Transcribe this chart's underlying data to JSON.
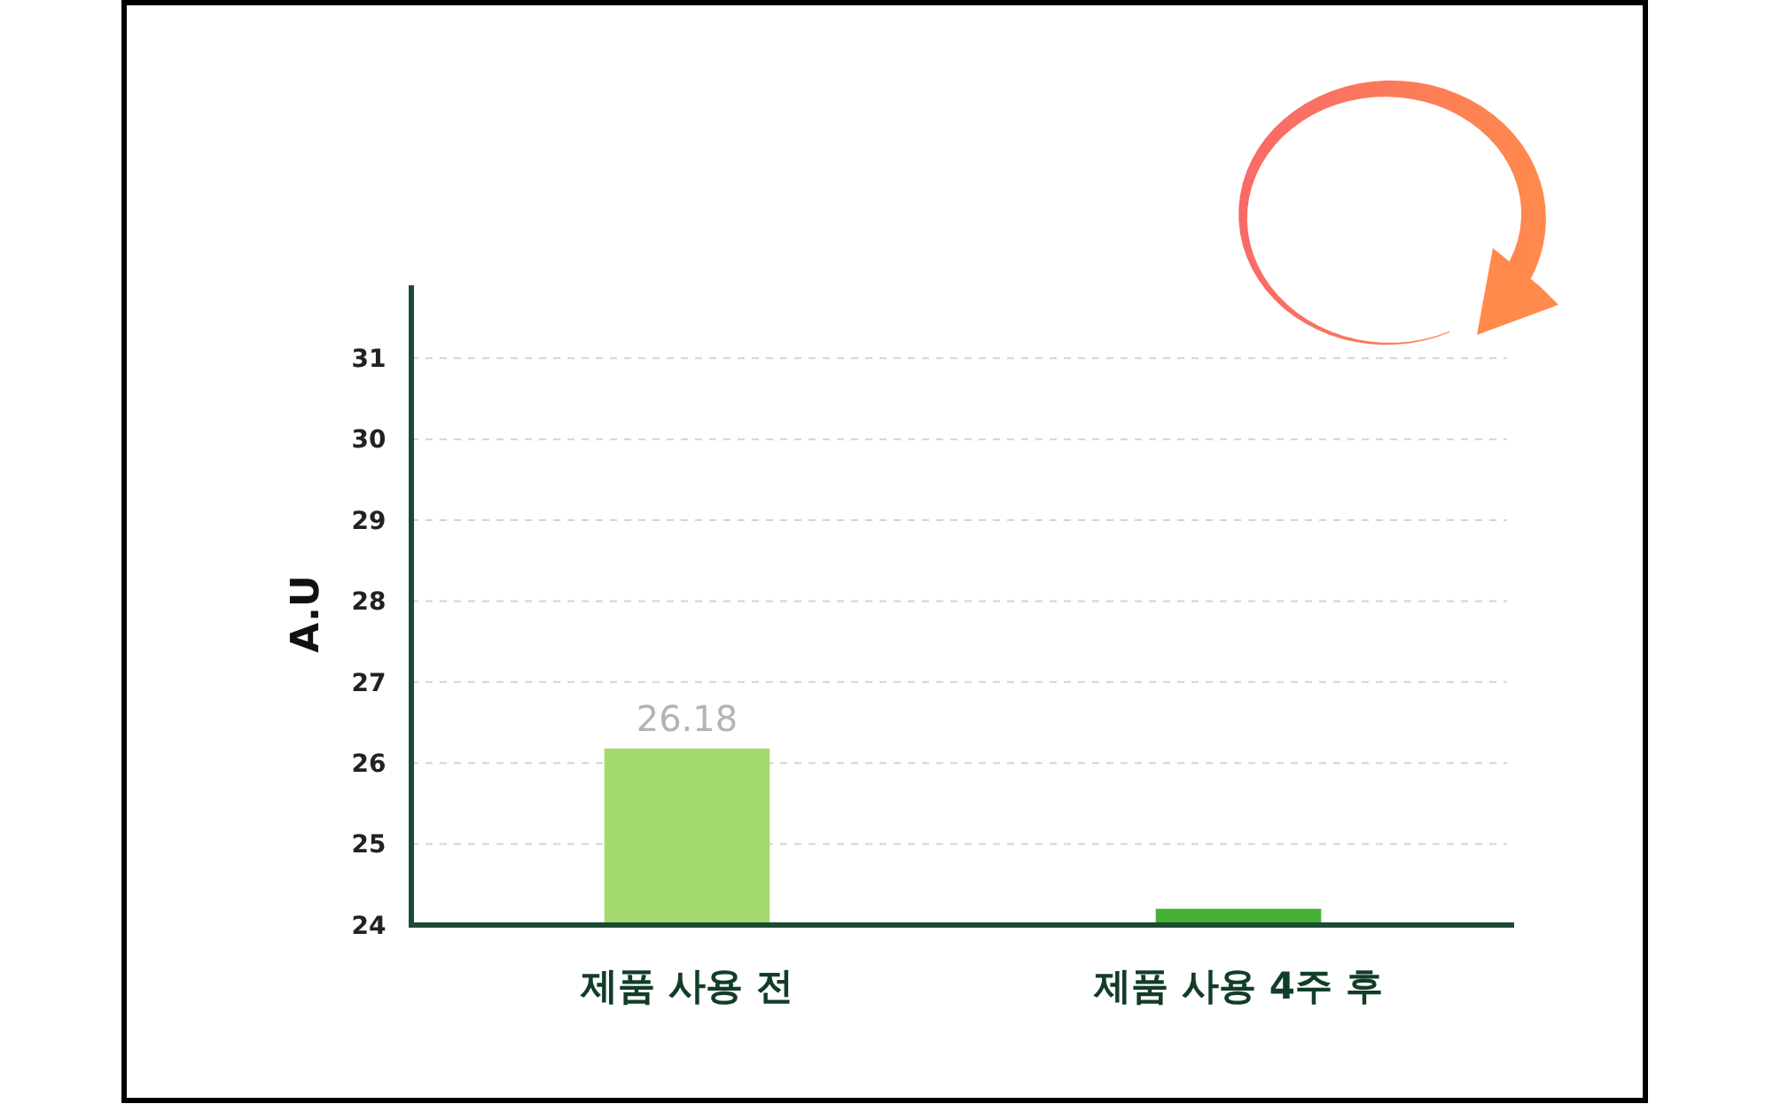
{
  "chart_data": {
    "type": "bar",
    "ylabel": "A.U",
    "categories": [
      "제품 사용 전",
      "제품 사용 4주 후"
    ],
    "values": [
      26.18,
      24.2
    ],
    "colors": [
      "#a3d96f",
      "#44b035"
    ],
    "value_labels": [
      "26.18",
      null
    ],
    "ylim": [
      24,
      31.9
    ],
    "yticks": [
      24,
      25,
      26,
      27,
      28,
      29,
      30,
      31
    ],
    "grid": "y"
  }
}
